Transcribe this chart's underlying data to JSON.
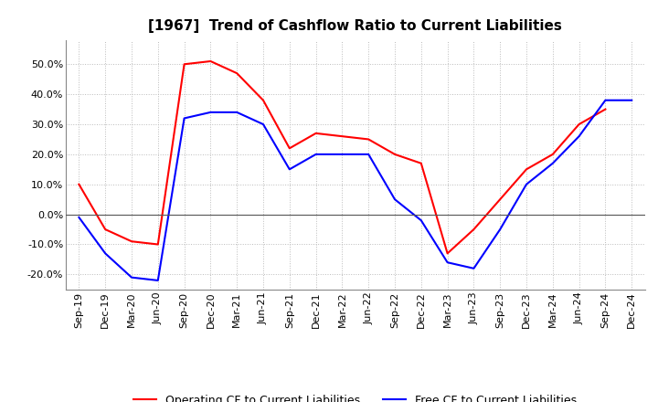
{
  "title": "[1967]  Trend of Cashflow Ratio to Current Liabilities",
  "x_labels": [
    "Sep-19",
    "Dec-19",
    "Mar-20",
    "Jun-20",
    "Sep-20",
    "Dec-20",
    "Mar-21",
    "Jun-21",
    "Sep-21",
    "Dec-21",
    "Mar-22",
    "Jun-22",
    "Sep-22",
    "Dec-22",
    "Mar-23",
    "Jun-23",
    "Sep-23",
    "Dec-23",
    "Mar-24",
    "Jun-24",
    "Sep-24",
    "Dec-24"
  ],
  "operating_cf": [
    0.1,
    -0.05,
    -0.09,
    -0.1,
    0.5,
    0.51,
    0.47,
    0.38,
    0.22,
    0.27,
    0.26,
    0.25,
    0.2,
    0.17,
    -0.13,
    -0.05,
    0.05,
    0.15,
    0.2,
    0.3,
    0.35,
    null
  ],
  "free_cf": [
    -0.01,
    -0.13,
    -0.21,
    -0.22,
    0.32,
    0.34,
    0.34,
    0.3,
    0.15,
    0.2,
    0.2,
    0.2,
    0.05,
    -0.02,
    -0.16,
    -0.18,
    -0.05,
    0.1,
    0.17,
    0.26,
    0.38,
    0.38
  ],
  "operating_color": "#FF0000",
  "free_color": "#0000FF",
  "ylim": [
    -0.25,
    0.58
  ],
  "yticks": [
    -0.2,
    -0.1,
    0.0,
    0.1,
    0.2,
    0.3,
    0.4,
    0.5
  ],
  "background_color": "#FFFFFF",
  "grid_color": "#BBBBBB",
  "legend_op": "Operating CF to Current Liabilities",
  "legend_free": "Free CF to Current Liabilities"
}
